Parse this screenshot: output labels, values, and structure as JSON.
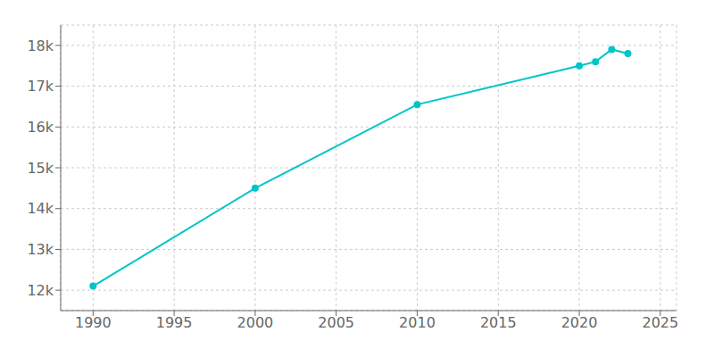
{
  "chart_data": {
    "type": "line",
    "x": [
      1990,
      2000,
      2010,
      2020,
      2021,
      2022,
      2023
    ],
    "values": [
      12100,
      14500,
      16550,
      17500,
      17600,
      17900,
      17800
    ],
    "color": "#00C5C8",
    "marker": "circle",
    "xlim": [
      1988,
      2026
    ],
    "xticks": [
      1990,
      1995,
      2000,
      2005,
      2010,
      2015,
      2020,
      2025
    ],
    "ylim": [
      11500,
      18500
    ],
    "yticks": [
      {
        "value": 12000,
        "label": "12k"
      },
      {
        "value": 13000,
        "label": "13k"
      },
      {
        "value": 14000,
        "label": "14k"
      },
      {
        "value": 15000,
        "label": "15k"
      },
      {
        "value": 16000,
        "label": "16k"
      },
      {
        "value": 17000,
        "label": "17k"
      },
      {
        "value": 18000,
        "label": "18k"
      }
    ],
    "grid": true
  }
}
